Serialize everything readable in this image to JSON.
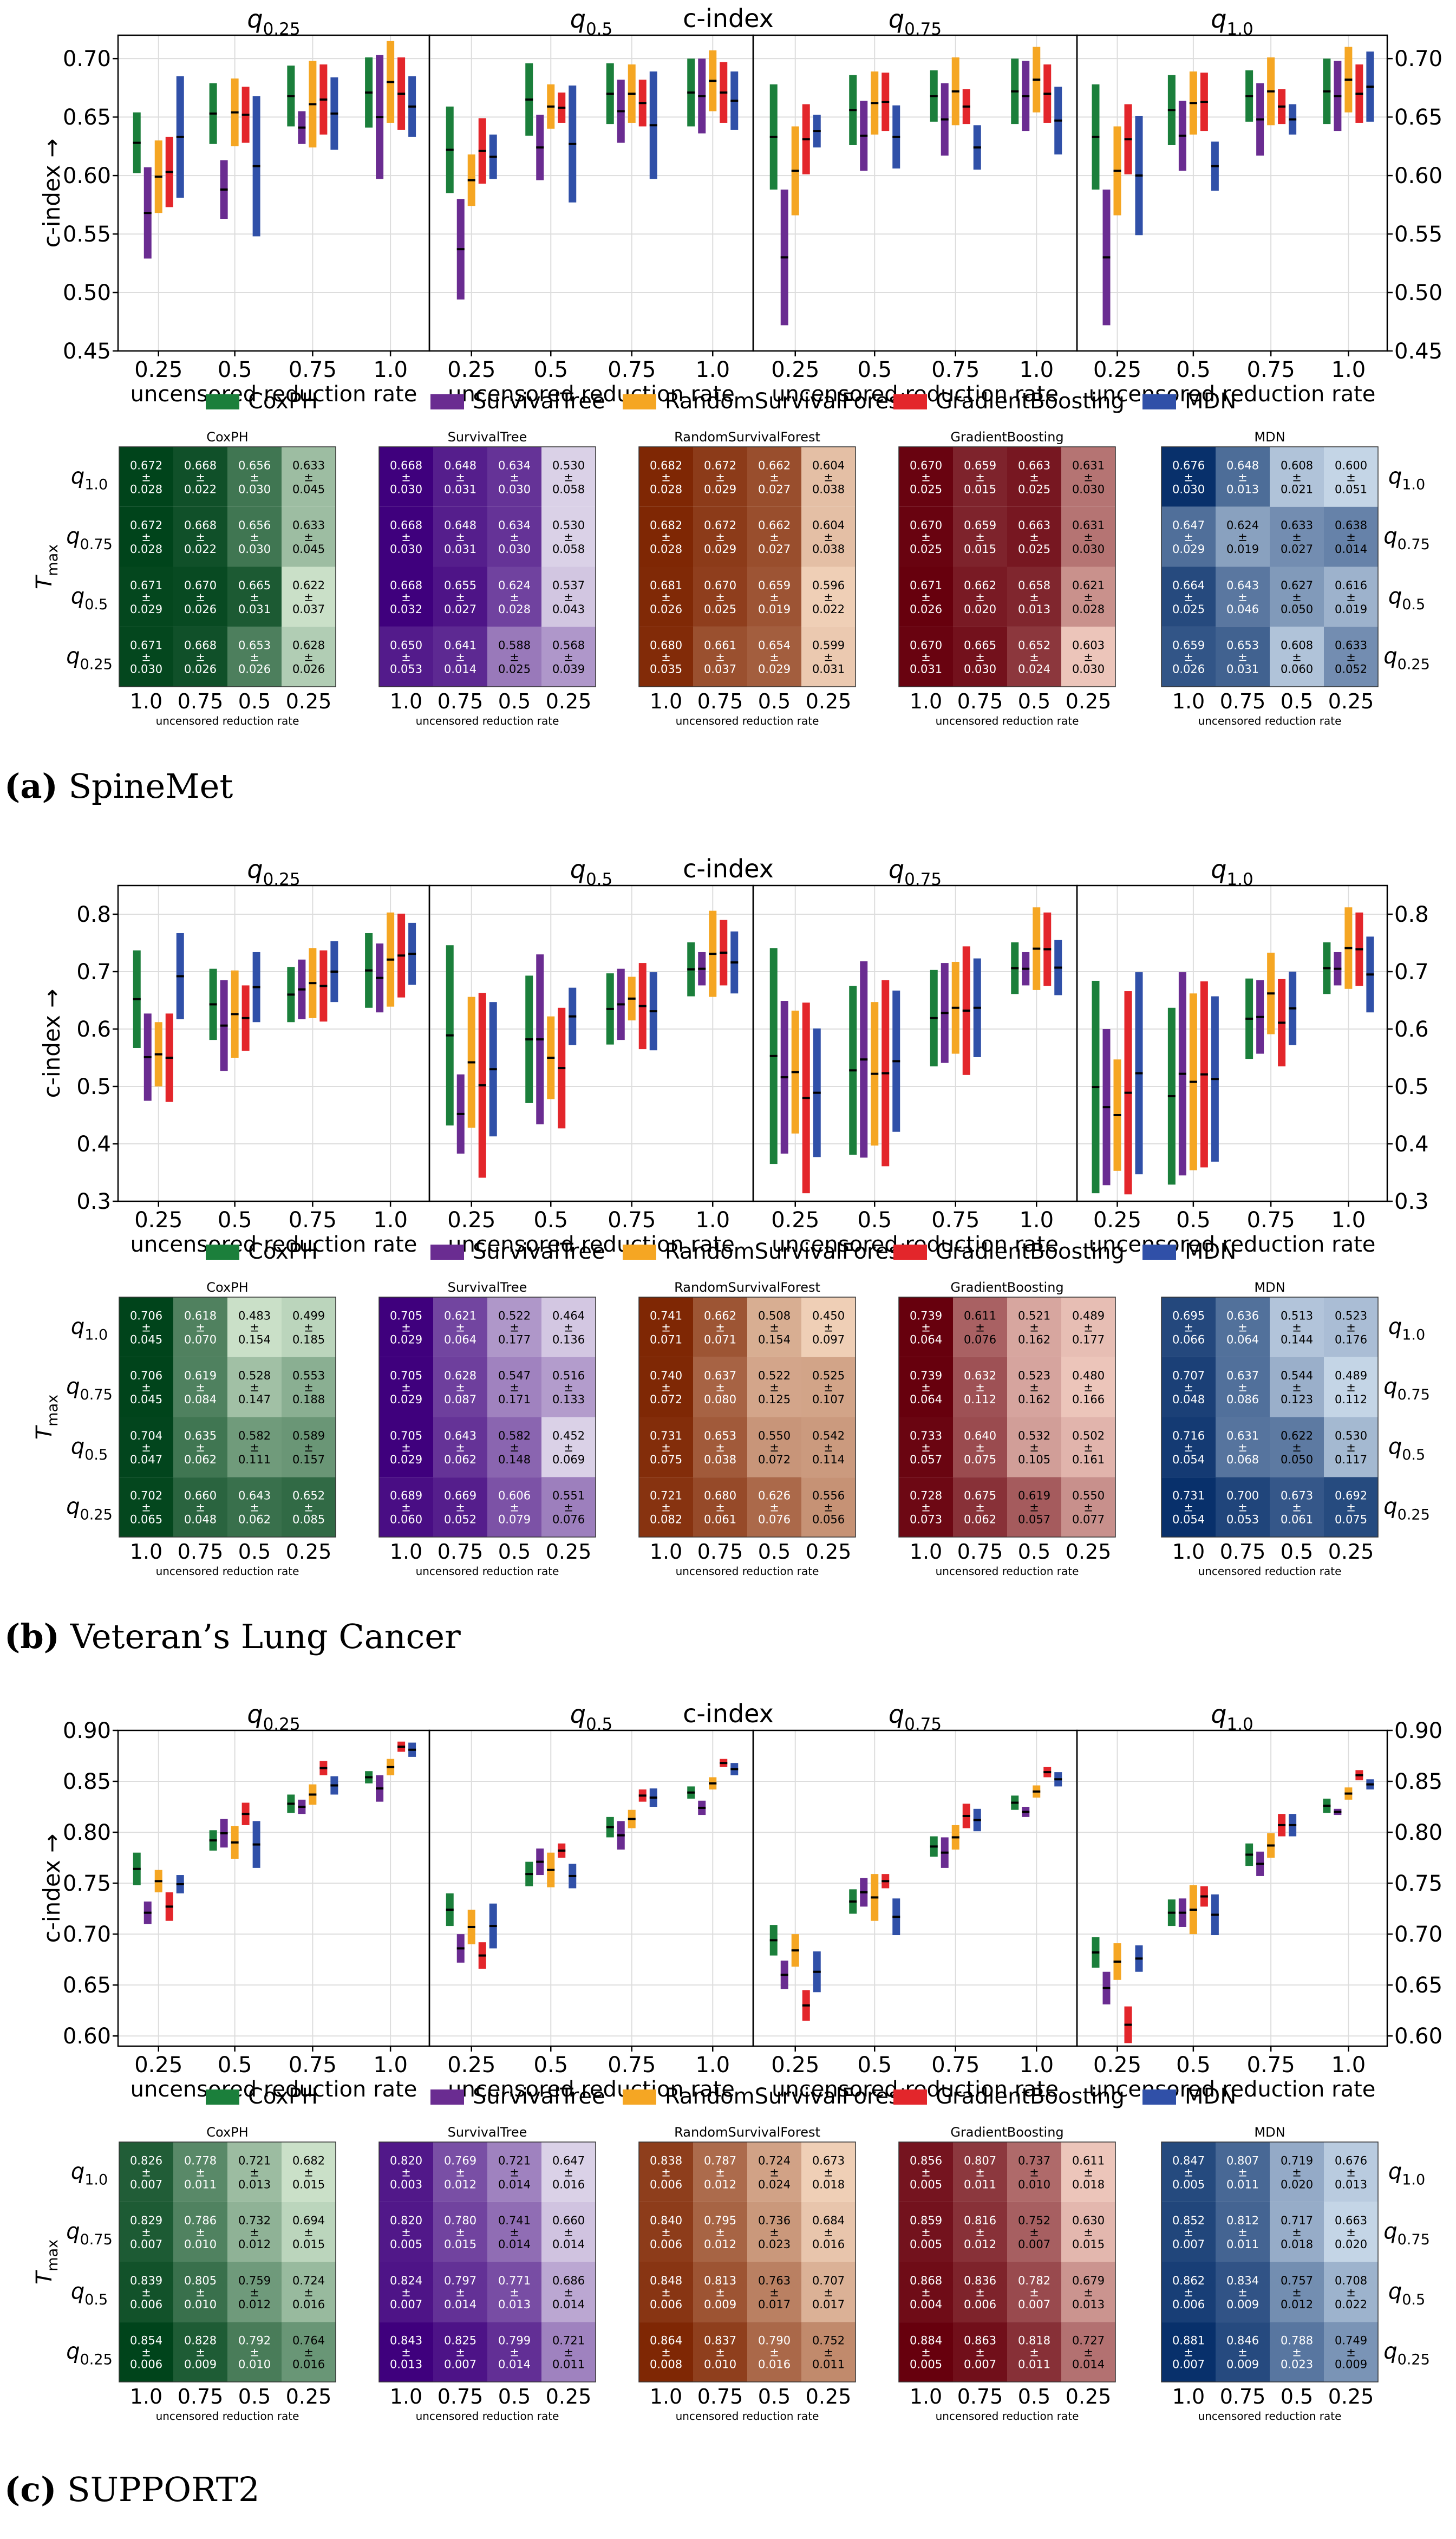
{
  "colors": {
    "CoxPH": "#1b7f3b",
    "SurvivalTree": "#6a2c91",
    "RandomSurvivalForest": "#f5a623",
    "GradientBoosting": "#e3262b",
    "MDN": "#3050a8"
  },
  "labels": {
    "suptitle": "c-index",
    "panel_titles": [
      "q0.25",
      "q0.5",
      "q0.75",
      "q1.0"
    ],
    "xlabel": "uncensored reduction rate",
    "ylabel": "c-index →",
    "heat_ylabel": "Tmax",
    "heat_xlabel": "uncensored reduction rate",
    "box_x_ticks": [
      "0.25",
      "0.5",
      "0.75",
      "1.0"
    ],
    "heat_x_ticks": [
      "1.0",
      "0.75",
      "0.5",
      "0.25"
    ],
    "heat_row_ticks": [
      "q1.0",
      "q0.75",
      "q0.5",
      "q0.25"
    ],
    "models": [
      "CoxPH",
      "SurvivalTree",
      "RandomSurvivalForest",
      "GradientBoosting",
      "MDN"
    ]
  },
  "chart_data": [
    {
      "type": "bar",
      "caption_letter": "(a)",
      "caption_text": "SpineMet",
      "ylim": [
        0.45,
        0.72
      ],
      "yticks": [
        "0.45",
        "0.50",
        "0.55",
        "0.60",
        "0.65",
        "0.70"
      ],
      "ytick_values": [
        0.45,
        0.5,
        0.55,
        0.6,
        0.65,
        0.7
      ],
      "heatmaps": {
        "CoxPH": [
          [
            0.672,
            0.028,
            0.668,
            0.022,
            0.656,
            0.03,
            0.633,
            0.045
          ],
          [
            0.672,
            0.028,
            0.668,
            0.022,
            0.656,
            0.03,
            0.633,
            0.045
          ],
          [
            0.671,
            0.029,
            0.67,
            0.026,
            0.665,
            0.031,
            0.622,
            0.037
          ],
          [
            0.671,
            0.03,
            0.668,
            0.026,
            0.653,
            0.026,
            0.628,
            0.026
          ]
        ],
        "SurvivalTree": [
          [
            0.668,
            0.03,
            0.648,
            0.031,
            0.634,
            0.03,
            0.53,
            0.058
          ],
          [
            0.668,
            0.03,
            0.648,
            0.031,
            0.634,
            0.03,
            0.53,
            0.058
          ],
          [
            0.668,
            0.032,
            0.655,
            0.027,
            0.624,
            0.028,
            0.537,
            0.043
          ],
          [
            0.65,
            0.053,
            0.641,
            0.014,
            0.588,
            0.025,
            0.568,
            0.039
          ]
        ],
        "RandomSurvivalForest": [
          [
            0.682,
            0.028,
            0.672,
            0.029,
            0.662,
            0.027,
            0.604,
            0.038
          ],
          [
            0.682,
            0.028,
            0.672,
            0.029,
            0.662,
            0.027,
            0.604,
            0.038
          ],
          [
            0.681,
            0.026,
            0.67,
            0.025,
            0.659,
            0.019,
            0.596,
            0.022
          ],
          [
            0.68,
            0.035,
            0.661,
            0.037,
            0.654,
            0.029,
            0.599,
            0.031
          ]
        ],
        "GradientBoosting": [
          [
            0.67,
            0.025,
            0.659,
            0.015,
            0.663,
            0.025,
            0.631,
            0.03
          ],
          [
            0.67,
            0.025,
            0.659,
            0.015,
            0.663,
            0.025,
            0.631,
            0.03
          ],
          [
            0.671,
            0.026,
            0.662,
            0.02,
            0.658,
            0.013,
            0.621,
            0.028
          ],
          [
            0.67,
            0.031,
            0.665,
            0.03,
            0.652,
            0.024,
            0.603,
            0.03
          ]
        ],
        "MDN": [
          [
            0.676,
            0.03,
            0.648,
            0.013,
            0.608,
            0.021,
            0.6,
            0.051
          ],
          [
            0.647,
            0.029,
            0.624,
            0.019,
            0.633,
            0.027,
            0.638,
            0.014
          ],
          [
            0.664,
            0.025,
            0.643,
            0.046,
            0.627,
            0.05,
            0.616,
            0.019
          ],
          [
            0.659,
            0.026,
            0.653,
            0.031,
            0.608,
            0.06,
            0.633,
            0.052
          ]
        ]
      }
    },
    {
      "type": "bar",
      "caption_letter": "(b)",
      "caption_text": "Veteran’s Lung Cancer",
      "ylim": [
        0.3,
        0.85
      ],
      "yticks": [
        "0.3",
        "0.4",
        "0.5",
        "0.6",
        "0.7",
        "0.8"
      ],
      "ytick_values": [
        0.3,
        0.4,
        0.5,
        0.6,
        0.7,
        0.8
      ],
      "heatmaps": {
        "CoxPH": [
          [
            0.706,
            0.045,
            0.618,
            0.07,
            0.483,
            0.154,
            0.499,
            0.185
          ],
          [
            0.706,
            0.045,
            0.619,
            0.084,
            0.528,
            0.147,
            0.553,
            0.188
          ],
          [
            0.704,
            0.047,
            0.635,
            0.062,
            0.582,
            0.111,
            0.589,
            0.157
          ],
          [
            0.702,
            0.065,
            0.66,
            0.048,
            0.643,
            0.062,
            0.652,
            0.085
          ]
        ],
        "SurvivalTree": [
          [
            0.705,
            0.029,
            0.621,
            0.064,
            0.522,
            0.177,
            0.464,
            0.136
          ],
          [
            0.705,
            0.029,
            0.628,
            0.087,
            0.547,
            0.171,
            0.516,
            0.133
          ],
          [
            0.705,
            0.029,
            0.643,
            0.062,
            0.582,
            0.148,
            0.452,
            0.069
          ],
          [
            0.689,
            0.06,
            0.669,
            0.052,
            0.606,
            0.079,
            0.551,
            0.076
          ]
        ],
        "RandomSurvivalForest": [
          [
            0.741,
            0.071,
            0.662,
            0.071,
            0.508,
            0.154,
            0.45,
            0.097
          ],
          [
            0.74,
            0.072,
            0.637,
            0.08,
            0.522,
            0.125,
            0.525,
            0.107
          ],
          [
            0.731,
            0.075,
            0.653,
            0.038,
            0.55,
            0.072,
            0.542,
            0.114
          ],
          [
            0.721,
            0.082,
            0.68,
            0.061,
            0.626,
            0.076,
            0.556,
            0.056
          ]
        ],
        "GradientBoosting": [
          [
            0.739,
            0.064,
            0.611,
            0.076,
            0.521,
            0.162,
            0.489,
            0.177
          ],
          [
            0.739,
            0.064,
            0.632,
            0.112,
            0.523,
            0.162,
            0.48,
            0.166
          ],
          [
            0.733,
            0.057,
            0.64,
            0.075,
            0.532,
            0.105,
            0.502,
            0.161
          ],
          [
            0.728,
            0.073,
            0.675,
            0.062,
            0.619,
            0.057,
            0.55,
            0.077
          ]
        ],
        "MDN": [
          [
            0.695,
            0.066,
            0.636,
            0.064,
            0.513,
            0.144,
            0.523,
            0.176
          ],
          [
            0.707,
            0.048,
            0.637,
            0.086,
            0.544,
            0.123,
            0.489,
            0.112
          ],
          [
            0.716,
            0.054,
            0.631,
            0.068,
            0.622,
            0.05,
            0.53,
            0.117
          ],
          [
            0.731,
            0.054,
            0.7,
            0.053,
            0.673,
            0.061,
            0.692,
            0.075
          ]
        ]
      }
    },
    {
      "type": "bar",
      "caption_letter": "(c)",
      "caption_text": "SUPPORT2",
      "ylim": [
        0.59,
        0.9
      ],
      "yticks": [
        "0.60",
        "0.65",
        "0.70",
        "0.75",
        "0.80",
        "0.85",
        "0.90"
      ],
      "ytick_values": [
        0.6,
        0.65,
        0.7,
        0.75,
        0.8,
        0.85,
        0.9
      ],
      "heatmaps": {
        "CoxPH": [
          [
            0.826,
            0.007,
            0.778,
            0.011,
            0.721,
            0.013,
            0.682,
            0.015
          ],
          [
            0.829,
            0.007,
            0.786,
            0.01,
            0.732,
            0.012,
            0.694,
            0.015
          ],
          [
            0.839,
            0.006,
            0.805,
            0.01,
            0.759,
            0.012,
            0.724,
            0.016
          ],
          [
            0.854,
            0.006,
            0.828,
            0.009,
            0.792,
            0.01,
            0.764,
            0.016
          ]
        ],
        "SurvivalTree": [
          [
            0.82,
            0.003,
            0.769,
            0.012,
            0.721,
            0.014,
            0.647,
            0.016
          ],
          [
            0.82,
            0.005,
            0.78,
            0.015,
            0.741,
            0.014,
            0.66,
            0.014
          ],
          [
            0.824,
            0.007,
            0.797,
            0.014,
            0.771,
            0.013,
            0.686,
            0.014
          ],
          [
            0.843,
            0.013,
            0.825,
            0.007,
            0.799,
            0.014,
            0.721,
            0.011
          ]
        ],
        "RandomSurvivalForest": [
          [
            0.838,
            0.006,
            0.787,
            0.012,
            0.724,
            0.024,
            0.673,
            0.018
          ],
          [
            0.84,
            0.006,
            0.795,
            0.012,
            0.736,
            0.023,
            0.684,
            0.016
          ],
          [
            0.848,
            0.006,
            0.813,
            0.009,
            0.763,
            0.017,
            0.707,
            0.017
          ],
          [
            0.864,
            0.008,
            0.837,
            0.01,
            0.79,
            0.016,
            0.752,
            0.011
          ]
        ],
        "GradientBoosting": [
          [
            0.856,
            0.005,
            0.807,
            0.011,
            0.737,
            0.01,
            0.611,
            0.018
          ],
          [
            0.859,
            0.005,
            0.816,
            0.012,
            0.752,
            0.007,
            0.63,
            0.015
          ],
          [
            0.868,
            0.004,
            0.836,
            0.006,
            0.782,
            0.007,
            0.679,
            0.013
          ],
          [
            0.884,
            0.005,
            0.863,
            0.007,
            0.818,
            0.011,
            0.727,
            0.014
          ]
        ],
        "MDN": [
          [
            0.847,
            0.005,
            0.807,
            0.011,
            0.719,
            0.02,
            0.676,
            0.013
          ],
          [
            0.852,
            0.007,
            0.812,
            0.011,
            0.717,
            0.018,
            0.663,
            0.02
          ],
          [
            0.862,
            0.006,
            0.834,
            0.009,
            0.757,
            0.012,
            0.708,
            0.022
          ],
          [
            0.881,
            0.007,
            0.846,
            0.009,
            0.788,
            0.023,
            0.749,
            0.009
          ]
        ]
      }
    }
  ]
}
